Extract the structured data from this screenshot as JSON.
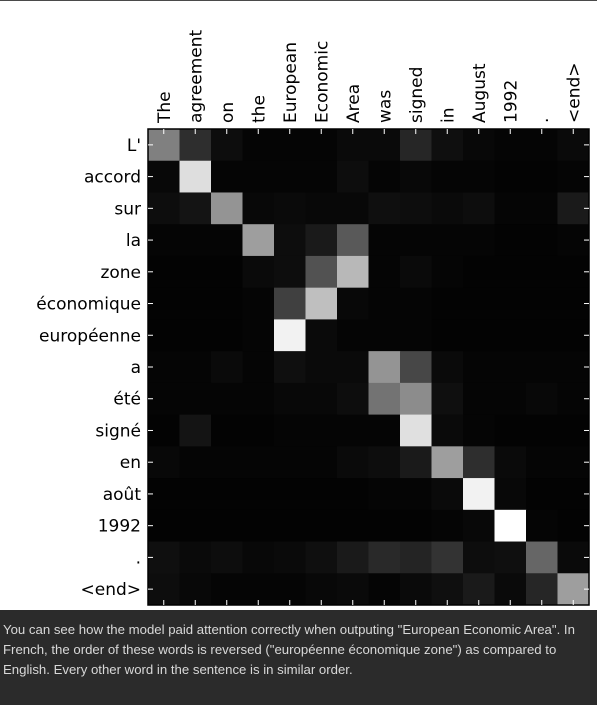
{
  "chart_data": {
    "type": "heatmap",
    "x_labels": [
      "The",
      "agreement",
      "on",
      "the",
      "European",
      "Economic",
      "Area",
      "was",
      "signed",
      "in",
      "August",
      "1992",
      ".",
      "<end>"
    ],
    "y_labels": [
      "L'",
      "accord",
      "sur",
      "la",
      "zone",
      "économique",
      "européenne",
      "a",
      "été",
      "signé",
      "en",
      "août",
      "1992",
      ".",
      "<end>"
    ],
    "value_range": [
      0,
      1
    ],
    "colormap": "grayscale (black = 0, white = 1)",
    "values": [
      [
        0.5,
        0.18,
        0.05,
        0.02,
        0.02,
        0.02,
        0.04,
        0.04,
        0.15,
        0.06,
        0.03,
        0.02,
        0.02,
        0.04
      ],
      [
        0.03,
        0.87,
        0.02,
        0.02,
        0.02,
        0.02,
        0.05,
        0.02,
        0.03,
        0.02,
        0.02,
        0.01,
        0.01,
        0.02
      ],
      [
        0.05,
        0.08,
        0.58,
        0.03,
        0.04,
        0.03,
        0.03,
        0.06,
        0.05,
        0.04,
        0.05,
        0.02,
        0.02,
        0.1
      ],
      [
        0.02,
        0.02,
        0.02,
        0.62,
        0.05,
        0.1,
        0.35,
        0.02,
        0.02,
        0.02,
        0.02,
        0.01,
        0.01,
        0.02
      ],
      [
        0.01,
        0.01,
        0.01,
        0.04,
        0.05,
        0.32,
        0.72,
        0.02,
        0.04,
        0.02,
        0.01,
        0.01,
        0.01,
        0.01
      ],
      [
        0.01,
        0.01,
        0.01,
        0.02,
        0.25,
        0.75,
        0.03,
        0.02,
        0.02,
        0.01,
        0.01,
        0.01,
        0.01,
        0.01
      ],
      [
        0.01,
        0.01,
        0.01,
        0.02,
        0.95,
        0.04,
        0.02,
        0.02,
        0.02,
        0.01,
        0.01,
        0.01,
        0.01,
        0.01
      ],
      [
        0.02,
        0.02,
        0.04,
        0.02,
        0.06,
        0.04,
        0.04,
        0.58,
        0.28,
        0.04,
        0.02,
        0.02,
        0.02,
        0.02
      ],
      [
        0.02,
        0.02,
        0.02,
        0.02,
        0.03,
        0.03,
        0.05,
        0.45,
        0.55,
        0.06,
        0.02,
        0.02,
        0.03,
        0.02
      ],
      [
        0.01,
        0.08,
        0.01,
        0.01,
        0.02,
        0.02,
        0.02,
        0.02,
        0.88,
        0.04,
        0.02,
        0.01,
        0.01,
        0.01
      ],
      [
        0.03,
        0.02,
        0.02,
        0.02,
        0.02,
        0.02,
        0.04,
        0.05,
        0.1,
        0.62,
        0.18,
        0.04,
        0.02,
        0.02
      ],
      [
        0.01,
        0.01,
        0.01,
        0.01,
        0.01,
        0.01,
        0.01,
        0.02,
        0.02,
        0.04,
        0.95,
        0.03,
        0.01,
        0.01
      ],
      [
        0.01,
        0.01,
        0.01,
        0.01,
        0.01,
        0.01,
        0.01,
        0.01,
        0.01,
        0.02,
        0.03,
        1.0,
        0.02,
        0.01
      ],
      [
        0.06,
        0.04,
        0.05,
        0.03,
        0.04,
        0.06,
        0.1,
        0.16,
        0.14,
        0.2,
        0.05,
        0.06,
        0.4,
        0.04
      ],
      [
        0.05,
        0.03,
        0.02,
        0.02,
        0.02,
        0.03,
        0.04,
        0.02,
        0.04,
        0.06,
        0.1,
        0.04,
        0.15,
        0.62
      ]
    ],
    "grid": false
  },
  "caption": "You can see how the model paid attention correctly when outputing \"European Economic Area\". In French, the order of these words is reversed (\"européenne économique zone\") as compared to English. Every other word in the sentence is in similar order."
}
